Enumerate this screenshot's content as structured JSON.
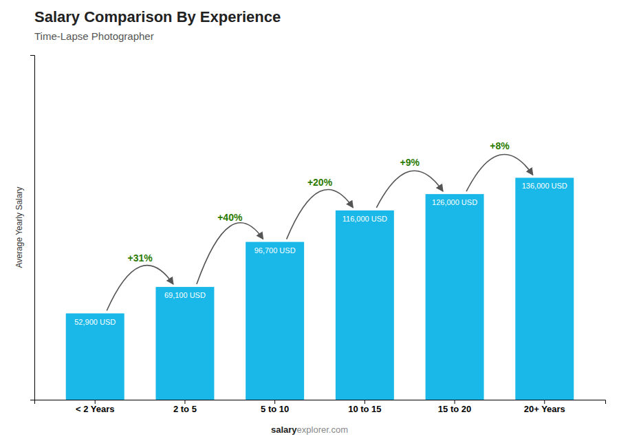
{
  "chart_data": {
    "type": "bar",
    "title": "Salary Comparison By Experience",
    "subtitle": "Time-Lapse Photographer",
    "ylabel": "Average Yearly Salary",
    "categories": [
      "< 2 Years",
      "2 to 5",
      "5 to 10",
      "10 to 15",
      "15 to 20",
      "20+ Years"
    ],
    "values": [
      52900,
      69100,
      96700,
      116000,
      126000,
      136000
    ],
    "value_labels": [
      "52,900 USD",
      "69,100 USD",
      "96,700 USD",
      "116,000 USD",
      "126,000 USD",
      "136,000 USD"
    ],
    "data_labels": true,
    "annotations": [
      "+31%",
      "+40%",
      "+20%",
      "+9%",
      "+8%"
    ],
    "footer": [
      "salary",
      "explorer.com"
    ],
    "color": "#19b8e8",
    "ylim": [
      0,
      211200
    ],
    "tick_labels": "x",
    "grid": false
  }
}
